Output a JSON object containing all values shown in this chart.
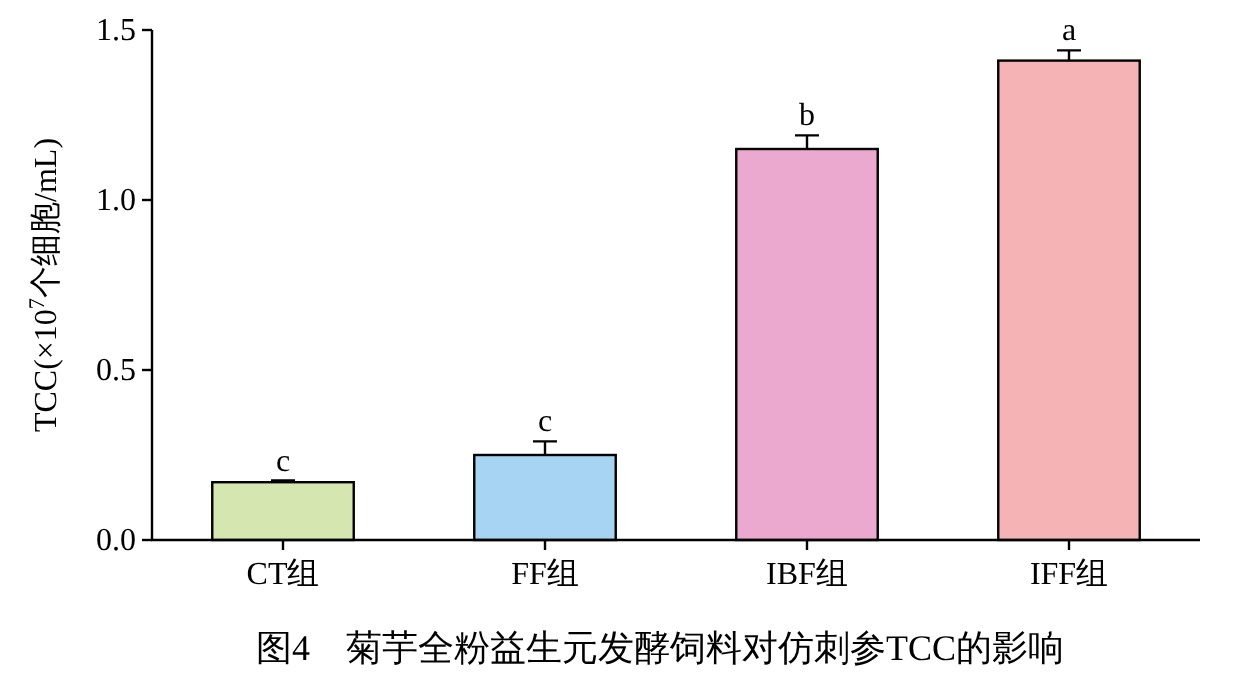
{
  "chart_data": {
    "type": "bar",
    "title": "图4　菊芋全粉益生元发酵饲料对仿刺参TCC的影响",
    "ylabel": "TCC(×10$^{7}$个细胞/mL)",
    "categories": [
      "CT组",
      "FF组",
      "IBF组",
      "IFF组"
    ],
    "values": [
      0.17,
      0.25,
      1.15,
      1.41
    ],
    "errors": [
      0.005,
      0.04,
      0.04,
      0.03
    ],
    "colors": [
      "#d5e6b0",
      "#a8d4f3",
      "#eca9cf",
      "#f5b3b6"
    ],
    "ylim": [
      0,
      1.5
    ],
    "yticks": [
      {
        "value": 0,
        "label": "0.0"
      },
      0.5,
      {
        "value": 1,
        "label": "1.0"
      },
      1.5
    ],
    "annotations": [
      {
        "text": "c",
        "x": "CT组",
        "y": 0.175
      },
      {
        "text": "c",
        "x": "FF组",
        "y": 0.29
      },
      {
        "text": "b",
        "x": "IBF组",
        "y": 1.19
      },
      {
        "text": "a",
        "x": "IFF组",
        "y": 1.44
      }
    ]
  }
}
